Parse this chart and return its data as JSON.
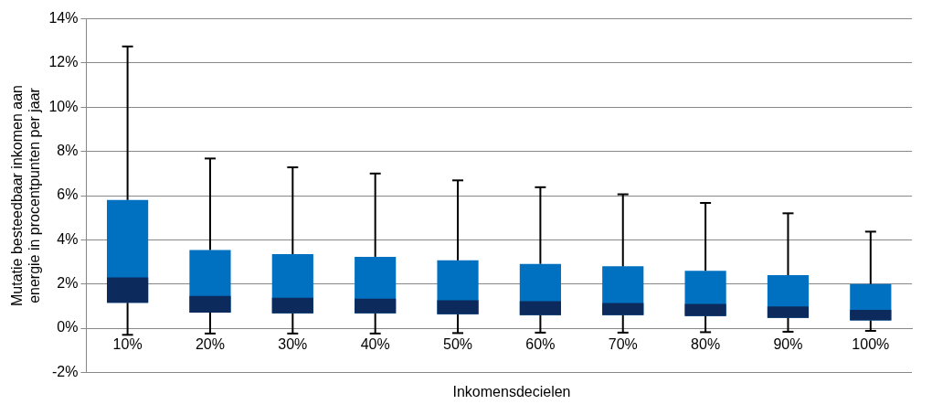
{
  "chart_data": {
    "type": "box",
    "xlabel": "Inkomensdecielen",
    "ylabel": "Mutatie besteedbaar inkomen aan energie in procentpunten per jaar",
    "categories": [
      "10%",
      "20%",
      "30%",
      "40%",
      "50%",
      "60%",
      "70%",
      "80%",
      "90%",
      "100%"
    ],
    "series": [
      {
        "color": "#0070c0",
        "boxes": [
          {
            "low": -0.3,
            "q1": 1.15,
            "median": 2.3,
            "q3": 5.8,
            "high": 12.75
          },
          {
            "low": -0.24,
            "q1": 0.71,
            "median": 1.46,
            "q3": 3.54,
            "high": 7.68
          },
          {
            "low": -0.24,
            "q1": 0.67,
            "median": 1.38,
            "q3": 3.35,
            "high": 7.28
          },
          {
            "low": -0.24,
            "q1": 0.67,
            "median": 1.34,
            "q3": 3.23,
            "high": 7.0
          },
          {
            "low": -0.22,
            "q1": 0.63,
            "median": 1.26,
            "q3": 3.07,
            "high": 6.69
          },
          {
            "low": -0.2,
            "q1": 0.59,
            "median": 1.22,
            "q3": 2.91,
            "high": 6.38
          },
          {
            "low": -0.2,
            "q1": 0.59,
            "median": 1.14,
            "q3": 2.8,
            "high": 6.06
          },
          {
            "low": -0.18,
            "q1": 0.55,
            "median": 1.1,
            "q3": 2.6,
            "high": 5.67
          },
          {
            "low": -0.16,
            "q1": 0.47,
            "median": 0.98,
            "q3": 2.4,
            "high": 5.2
          },
          {
            "low": -0.12,
            "q1": 0.35,
            "median": 0.83,
            "q3": 2.0,
            "high": 4.37
          }
        ]
      }
    ],
    "ylim": [
      -2,
      14
    ],
    "yticks": [
      {
        "value": -2,
        "label": "-2%"
      },
      {
        "value": 0,
        "label": "0%"
      },
      {
        "value": 2,
        "label": "2%"
      },
      {
        "value": 4,
        "label": "4%"
      },
      {
        "value": 6,
        "label": "6%"
      },
      {
        "value": 8,
        "label": "8%"
      },
      {
        "value": 10,
        "label": "10%"
      },
      {
        "value": 12,
        "label": "12%"
      },
      {
        "value": 14,
        "label": "14%"
      }
    ],
    "grid": "y",
    "legend": false
  }
}
